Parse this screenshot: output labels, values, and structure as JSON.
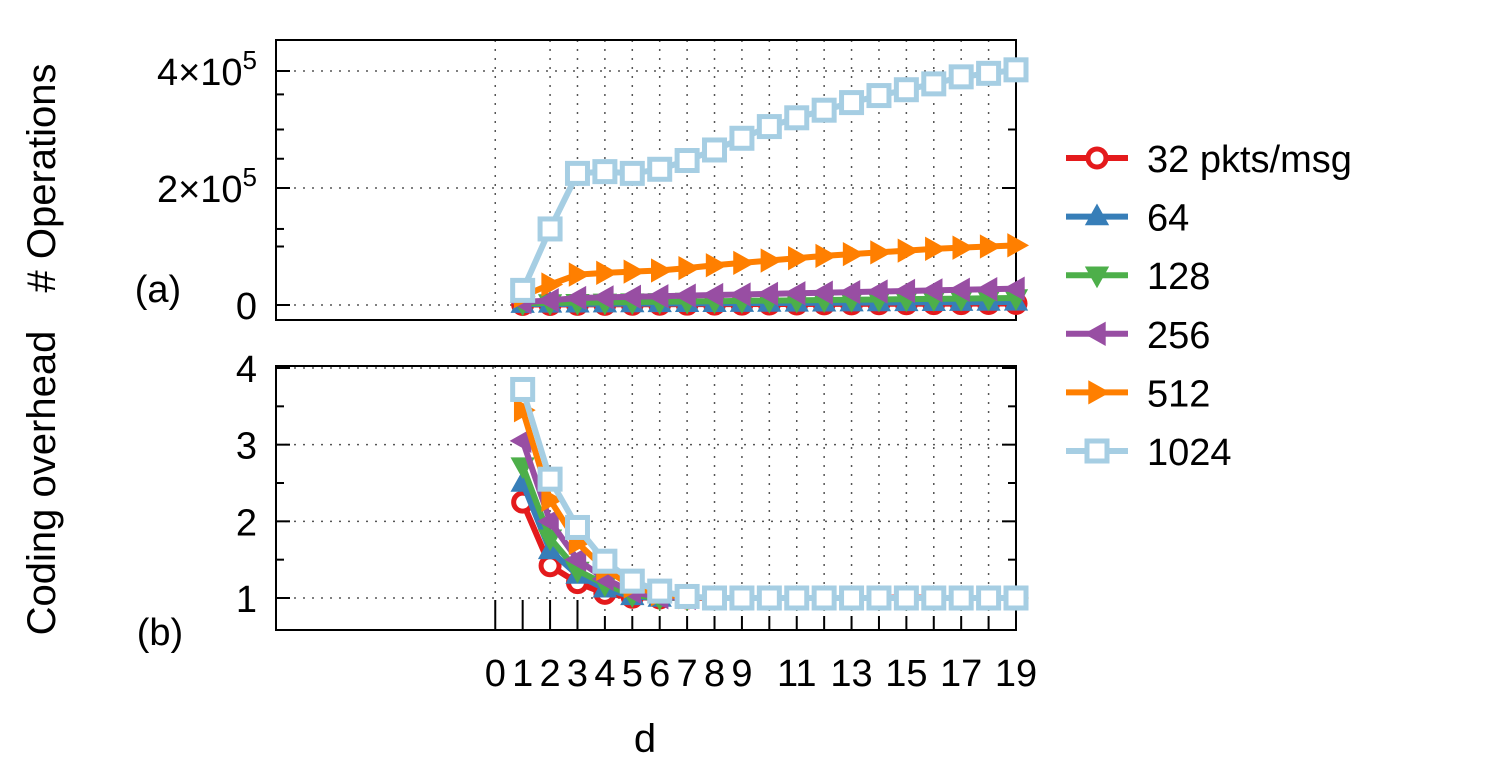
{
  "chart_data": {
    "type": "line",
    "x": [
      1,
      2,
      3,
      4,
      5,
      6,
      7,
      8,
      9,
      10,
      11,
      12,
      13,
      14,
      15,
      16,
      17,
      18,
      19
    ],
    "xlabel": "d",
    "ylabel_top": "# Operations",
    "ylabel_bottom": "Coding overhead",
    "legend_position": "right",
    "grid": true,
    "x_ticks": [
      "0",
      "1",
      "2",
      "3",
      "4",
      "5",
      "6",
      "7",
      "8",
      "9",
      "11",
      "13",
      "15",
      "17",
      "19"
    ],
    "panels": [
      {
        "label": "(a)",
        "ylim": [
          0,
          400000
        ],
        "y_ticks": [
          {
            "value": 0,
            "label": "0"
          },
          {
            "value": 200000,
            "label": "2×10",
            "exp": "5"
          },
          {
            "value": 400000,
            "label": "4×10",
            "exp": "5"
          }
        ],
        "series": [
          {
            "values": [
              800,
              900,
              1000,
              1100,
              1200,
              1300,
              1400,
              1500,
              1600,
              1700,
              1800,
              1900,
              2000,
              2100,
              2200,
              2300,
              2400,
              2500,
              2600
            ]
          },
          {
            "values": [
              1500,
              1800,
              2000,
              2200,
              2400,
              2600,
              2800,
              3000,
              3200,
              3400,
              3600,
              3800,
              4000,
              4200,
              4400,
              4600,
              4800,
              5000,
              5200
            ]
          },
          {
            "values": [
              3000,
              3500,
              4000,
              4500,
              5000,
              5500,
              6000,
              6500,
              7000,
              7500,
              8000,
              8500,
              9000,
              9500,
              10000,
              10500,
              11000,
              11500,
              12000
            ]
          },
          {
            "values": [
              5000,
              8000,
              12000,
              13000,
              14000,
              15000,
              16000,
              17000,
              18000,
              19000,
              20000,
              21000,
              22000,
              23000,
              24000,
              25000,
              26000,
              27000,
              28000
            ]
          },
          {
            "values": [
              15000,
              35000,
              52000,
              55000,
              57000,
              59000,
              63000,
              68000,
              72000,
              76000,
              80000,
              84000,
              87000,
              90000,
              93000,
              96000,
              98000,
              100000,
              102000
            ]
          },
          {
            "values": [
              25000,
              130000,
              225000,
              228000,
              225000,
              232000,
              247000,
              265000,
              285000,
              305000,
              320000,
              333000,
              346000,
              358000,
              368000,
              378000,
              390000,
              396000,
              402000
            ]
          }
        ]
      },
      {
        "label": "(b)",
        "ylim": [
          0.63,
          4.1
        ],
        "y_ticks": [
          {
            "value": 1,
            "label": "1"
          },
          {
            "value": 2,
            "label": "2"
          },
          {
            "value": 3,
            "label": "3"
          },
          {
            "value": 4,
            "label": "4"
          }
        ],
        "series": [
          {
            "values": [
              2.25,
              1.42,
              1.2,
              1.06,
              1.01,
              1.0,
              1.0,
              1.0,
              1.0,
              1.0,
              1.0,
              1.0,
              1.0,
              1.0,
              1.01,
              1.0,
              1.0,
              1.0,
              1.0
            ]
          },
          {
            "values": [
              2.5,
              1.62,
              1.3,
              1.12,
              1.02,
              1.0,
              1.0,
              1.0,
              1.0,
              1.0,
              1.0,
              1.0,
              1.0,
              1.0,
              1.0,
              1.0,
              1.0,
              1.0,
              1.0
            ]
          },
          {
            "values": [
              2.72,
              1.78,
              1.36,
              1.18,
              1.04,
              1.0,
              1.0,
              1.0,
              1.0,
              1.0,
              1.0,
              1.0,
              1.0,
              1.0,
              1.0,
              1.0,
              1.0,
              1.0,
              1.0
            ]
          },
          {
            "values": [
              3.05,
              2.0,
              1.5,
              1.25,
              1.08,
              1.01,
              1.0,
              1.0,
              1.0,
              1.0,
              1.0,
              1.0,
              1.0,
              1.0,
              1.0,
              1.0,
              1.0,
              1.0,
              1.0
            ]
          },
          {
            "values": [
              3.45,
              2.28,
              1.72,
              1.38,
              1.15,
              1.05,
              1.01,
              1.0,
              1.0,
              1.0,
              1.0,
              1.0,
              1.0,
              1.0,
              1.0,
              1.0,
              1.0,
              1.0,
              1.0
            ]
          },
          {
            "values": [
              3.72,
              2.55,
              1.92,
              1.48,
              1.22,
              1.09,
              1.02,
              1.0,
              1.0,
              1.0,
              1.0,
              1.0,
              1.0,
              1.0,
              1.0,
              1.0,
              1.0,
              1.0,
              1.0
            ]
          }
        ]
      }
    ],
    "series_meta": [
      {
        "name": "32 pkts/msg",
        "color": "#e41a1c",
        "marker": "circle"
      },
      {
        "name": "64",
        "color": "#377eb8",
        "marker": "triangle-up"
      },
      {
        "name": "128",
        "color": "#4daf4a",
        "marker": "triangle-down"
      },
      {
        "name": "256",
        "color": "#984ea3",
        "marker": "triangle-left"
      },
      {
        "name": "512",
        "color": "#ff7f00",
        "marker": "triangle-right"
      },
      {
        "name": "1024",
        "color": "#a6cee3",
        "marker": "square"
      }
    ]
  }
}
